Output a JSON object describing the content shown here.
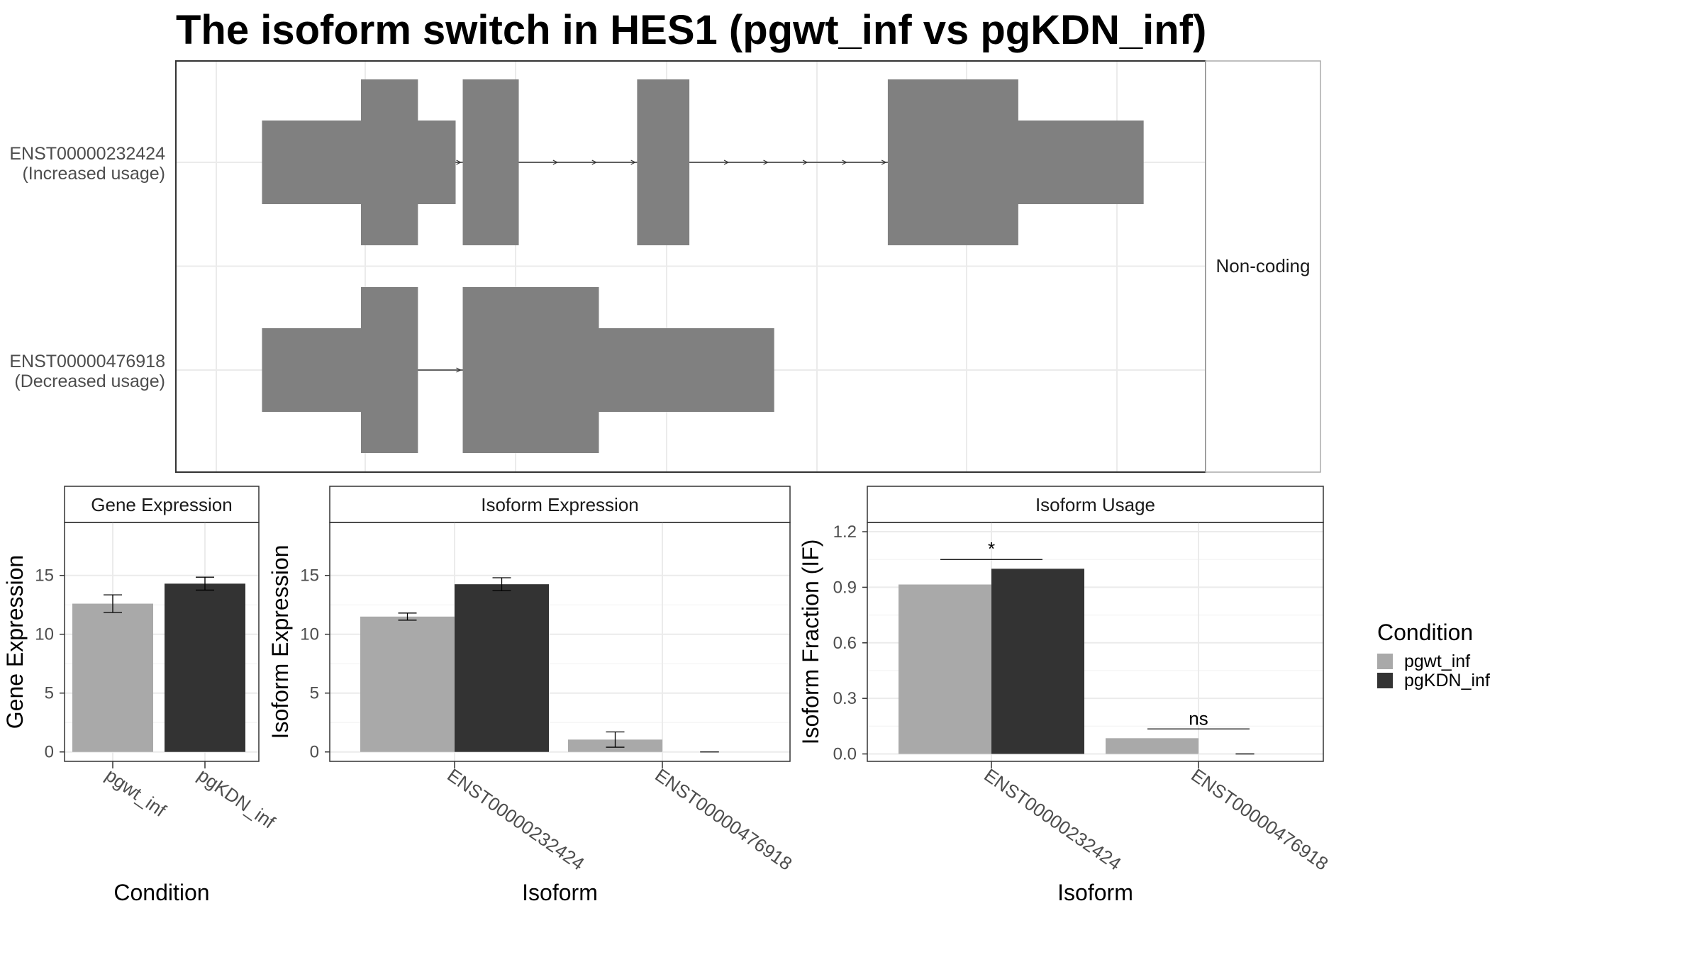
{
  "title": "The isoform switch in HES1 (pgwt_inf vs pgKDN_inf)",
  "colors": {
    "pgwt_inf": "#a9a9a9",
    "pgKDN_inf": "#333333",
    "exon": "#808080"
  },
  "structure": {
    "facet_label": "Non-coding",
    "isoforms": [
      {
        "id": "ENST00000232424",
        "note": "(Increased usage)",
        "exons": [
          {
            "start": 0.05,
            "end": 0.155,
            "cds": false
          },
          {
            "start": 0.155,
            "end": 0.215,
            "cds": true
          },
          {
            "start": 0.215,
            "end": 0.255,
            "cds": false
          },
          {
            "start": 0.263,
            "end": 0.322,
            "cds": true
          },
          {
            "start": 0.448,
            "end": 0.503,
            "cds": true
          },
          {
            "start": 0.714,
            "end": 0.852,
            "cds": true
          },
          {
            "start": 0.852,
            "end": 0.985,
            "cds": false
          }
        ],
        "introns": [
          [
            0.215,
            0.263
          ],
          [
            0.322,
            0.448
          ],
          [
            0.503,
            0.714
          ]
        ]
      },
      {
        "id": "ENST00000476918",
        "note": "(Decreased usage)",
        "exons": [
          {
            "start": 0.05,
            "end": 0.155,
            "cds": false
          },
          {
            "start": 0.155,
            "end": 0.215,
            "cds": true
          },
          {
            "start": 0.263,
            "end": 0.407,
            "cds": true
          },
          {
            "start": 0.407,
            "end": 0.593,
            "cds": false
          }
        ],
        "introns": [
          [
            0.215,
            0.263
          ]
        ]
      }
    ]
  },
  "chart_data": [
    {
      "type": "bar",
      "strip": "Gene Expression",
      "xlabel": "Condition",
      "ylabel": "Gene Expression",
      "ylim": [
        -0.8,
        19.5
      ],
      "yticks": [
        "0",
        "5",
        "10",
        "15"
      ],
      "categories": [
        "pgwt_inf",
        "pgKDN_inf"
      ],
      "series": [
        {
          "name": "pgwt_inf",
          "values": [
            12.6,
            null
          ],
          "err": [
            0.75,
            null
          ]
        },
        {
          "name": "pgKDN_inf",
          "values": [
            null,
            14.3
          ],
          "err": [
            null,
            0.55
          ]
        }
      ]
    },
    {
      "type": "bar",
      "strip": "Isoform Expression",
      "xlabel": "Isoform",
      "ylabel": "Isoform Expression",
      "ylim": [
        -0.8,
        19.5
      ],
      "yticks": [
        "0",
        "5",
        "10",
        "15"
      ],
      "categories": [
        "ENST00000232424",
        "ENST00000476918"
      ],
      "series": [
        {
          "name": "pgwt_inf",
          "values": [
            11.5,
            1.05
          ],
          "err": [
            0.3,
            0.65
          ]
        },
        {
          "name": "pgKDN_inf",
          "values": [
            14.25,
            0.05
          ],
          "err": [
            0.55,
            0.0
          ]
        }
      ]
    },
    {
      "type": "bar",
      "strip": "Isoform Usage",
      "xlabel": "Isoform",
      "ylabel": "Isoform Fraction (IF)",
      "ylim": [
        -0.04,
        1.25
      ],
      "yticks": [
        "0.0",
        "0.3",
        "0.6",
        "0.9",
        "1.2"
      ],
      "categories": [
        "ENST00000232424",
        "ENST00000476918"
      ],
      "series": [
        {
          "name": "pgwt_inf",
          "values": [
            0.915,
            0.085
          ]
        },
        {
          "name": "pgKDN_inf",
          "values": [
            1.0,
            0.0
          ]
        }
      ],
      "annotations": [
        {
          "category": "ENST00000232424",
          "text": "*",
          "y": 1.05
        },
        {
          "category": "ENST00000476918",
          "text": "ns",
          "y": 0.135
        }
      ]
    }
  ],
  "legend": {
    "title": "Condition",
    "items": [
      "pgwt_inf",
      "pgKDN_inf"
    ]
  }
}
